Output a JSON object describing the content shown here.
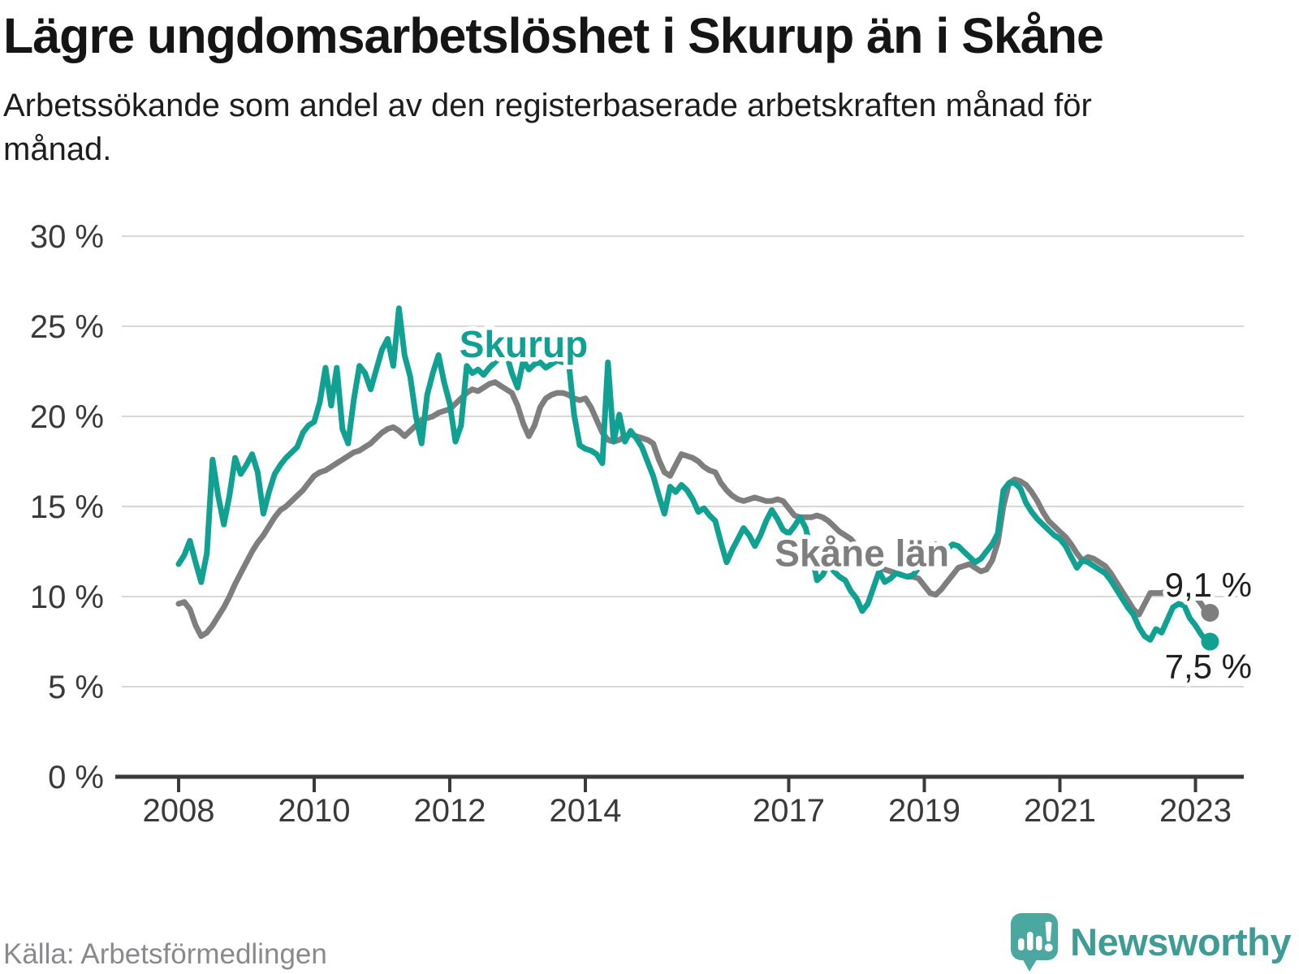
{
  "header": {
    "title": "Lägre ungdomsarbetslöshet i Skurup än i Skåne",
    "subtitle": "Arbetssökande som andel av den registerbaserade arbetskraften månad för månad."
  },
  "footer": {
    "source": "Källa: Arbetsförmedlingen",
    "brand": "Newsworthy"
  },
  "colors": {
    "skurup_teal": "#10a193",
    "skane_gray": "#7e7e7e",
    "gridline": "#d8d8d8",
    "axis": "#3a3a3a",
    "tick_label": "#3a3a3a",
    "end_label": "#1f1f1f",
    "logo_bubble": "#4ba8a0",
    "wordmark": "#3e9c94"
  },
  "chart_data": {
    "type": "line",
    "title": "Lägre ungdomsarbetslöshet i Skurup än i Skåne",
    "subtitle": "Arbetssökande som andel av den registerbaserade arbetskraften månad för månad.",
    "unit": "percent of registered labour force",
    "x_unit": "monthly",
    "x_start_year": 2008,
    "x_start_month": 1,
    "x_end_year": 2023,
    "x_end_month": 3,
    "ylim": [
      0,
      30
    ],
    "grid": true,
    "legend": "inline-labels",
    "yticks": [
      {
        "value": 0,
        "label": "0 %"
      },
      {
        "value": 5,
        "label": "5 %"
      },
      {
        "value": 10,
        "label": "10 %"
      },
      {
        "value": 15,
        "label": "15 %"
      },
      {
        "value": 20,
        "label": "20 %"
      },
      {
        "value": 25,
        "label": "25 %"
      },
      {
        "value": 30,
        "label": "30 %"
      }
    ],
    "xticks": [
      {
        "value": 2008,
        "label": "2008"
      },
      {
        "value": 2010,
        "label": "2010"
      },
      {
        "value": 2012,
        "label": "2012"
      },
      {
        "value": 2014,
        "label": "2014"
      },
      {
        "value": 2017,
        "label": "2017"
      },
      {
        "value": 2019,
        "label": "2019"
      },
      {
        "value": 2021,
        "label": "2021"
      },
      {
        "value": 2023,
        "label": "2023"
      }
    ],
    "series": [
      {
        "key": "skane-lan",
        "name": "Skåne län",
        "color": "#7e7e7e",
        "end_label": "9,1 %",
        "end_value": 9.1,
        "label_pos": {
          "year": 2018.08,
          "value": 12.4
        },
        "values": [
          9.6,
          9.7,
          9.3,
          8.4,
          7.8,
          8.0,
          8.4,
          8.9,
          9.4,
          10.0,
          10.7,
          11.3,
          11.9,
          12.5,
          13.0,
          13.4,
          13.9,
          14.4,
          14.8,
          15.0,
          15.3,
          15.6,
          15.9,
          16.3,
          16.7,
          16.9,
          17.0,
          17.2,
          17.4,
          17.6,
          17.8,
          18.0,
          18.1,
          18.3,
          18.5,
          18.8,
          19.1,
          19.3,
          19.4,
          19.2,
          18.9,
          19.2,
          19.5,
          19.8,
          19.9,
          20.0,
          20.2,
          20.3,
          20.4,
          20.7,
          21.0,
          21.3,
          21.5,
          21.4,
          21.6,
          21.8,
          21.9,
          21.7,
          21.5,
          21.3,
          20.6,
          19.6,
          18.9,
          19.5,
          20.5,
          21.0,
          21.2,
          21.3,
          21.3,
          21.2,
          21.0,
          20.9,
          21.0,
          20.5,
          19.8,
          19.1,
          18.7,
          18.6,
          18.7,
          18.9,
          19.0,
          18.9,
          18.8,
          18.7,
          18.5,
          17.6,
          16.9,
          16.7,
          17.3,
          17.9,
          17.8,
          17.7,
          17.5,
          17.2,
          17.0,
          16.9,
          16.3,
          15.9,
          15.6,
          15.4,
          15.3,
          15.4,
          15.5,
          15.4,
          15.3,
          15.3,
          15.4,
          15.3,
          14.9,
          14.5,
          14.4,
          14.4,
          14.4,
          14.5,
          14.4,
          14.2,
          13.9,
          13.6,
          13.4,
          13.2,
          12.8,
          12.4,
          12.1,
          11.8,
          11.6,
          11.5,
          11.4,
          11.3,
          11.2,
          11.1,
          11.1,
          11.0,
          10.6,
          10.2,
          10.1,
          10.4,
          10.8,
          11.2,
          11.6,
          11.7,
          11.8,
          11.6,
          11.4,
          11.5,
          12.0,
          13.0,
          15.0,
          16.3,
          16.5,
          16.4,
          16.2,
          15.8,
          15.3,
          14.7,
          14.2,
          13.9,
          13.6,
          13.3,
          12.9,
          12.4,
          12.0,
          12.2,
          12.1,
          11.9,
          11.7,
          11.3,
          10.8,
          10.3,
          9.8,
          9.3,
          9.0,
          9.6,
          10.2,
          10.2,
          10.2,
          10.3,
          10.3,
          10.2,
          10.2,
          10.2,
          10.0,
          9.6,
          9.1
        ]
      },
      {
        "key": "skurup",
        "name": "Skurup",
        "color": "#10a193",
        "end_label": "7,5 %",
        "end_value": 7.5,
        "label_pos": {
          "year": 2013.09,
          "value": 24.0
        },
        "values": [
          11.8,
          12.3,
          13.1,
          11.9,
          10.8,
          12.4,
          17.6,
          15.6,
          14.0,
          15.6,
          17.7,
          16.8,
          17.3,
          17.9,
          16.9,
          14.6,
          15.8,
          16.8,
          17.3,
          17.7,
          18.0,
          18.3,
          19.1,
          19.5,
          19.7,
          20.8,
          22.7,
          20.6,
          22.7,
          19.3,
          18.5,
          20.9,
          22.8,
          22.4,
          21.5,
          22.6,
          23.7,
          24.3,
          22.8,
          26.0,
          23.4,
          22.2,
          20.0,
          18.5,
          21.2,
          22.4,
          23.4,
          21.9,
          20.7,
          18.6,
          19.5,
          22.8,
          22.4,
          22.6,
          22.3,
          22.7,
          23.0,
          23.3,
          23.5,
          22.4,
          21.6,
          23.1,
          22.6,
          22.9,
          23.0,
          22.7,
          22.9,
          23.1,
          23.0,
          23.2,
          20.1,
          18.4,
          18.2,
          18.1,
          17.9,
          17.4,
          23.0,
          18.6,
          20.1,
          18.6,
          19.2,
          18.8,
          18.3,
          17.5,
          16.7,
          15.6,
          14.6,
          16.1,
          15.8,
          16.2,
          15.9,
          15.4,
          14.7,
          14.9,
          14.5,
          14.2,
          13.0,
          11.9,
          12.6,
          13.2,
          13.8,
          13.4,
          12.8,
          13.4,
          14.2,
          14.8,
          14.3,
          13.7,
          13.5,
          13.9,
          14.4,
          13.8,
          12.5,
          10.9,
          11.2,
          11.8,
          11.4,
          11.1,
          10.9,
          10.3,
          9.9,
          9.2,
          9.6,
          10.5,
          11.4,
          10.8,
          11.0,
          11.3,
          11.2,
          11.1,
          11.2,
          11.6,
          12.0,
          12.6,
          12.9,
          12.7,
          12.6,
          12.9,
          12.8,
          12.5,
          12.2,
          11.9,
          12.1,
          12.5,
          12.9,
          13.5,
          15.9,
          16.3,
          16.3,
          16.0,
          15.2,
          14.7,
          14.3,
          14.0,
          13.7,
          13.4,
          13.2,
          12.8,
          12.2,
          11.6,
          12.0,
          11.9,
          11.7,
          11.5,
          11.3,
          10.9,
          10.4,
          9.9,
          9.4,
          9.0,
          8.3,
          7.8,
          7.6,
          8.2,
          8.0,
          8.7,
          9.4,
          9.6,
          9.5,
          8.8,
          8.4,
          7.9,
          7.5
        ]
      }
    ]
  }
}
